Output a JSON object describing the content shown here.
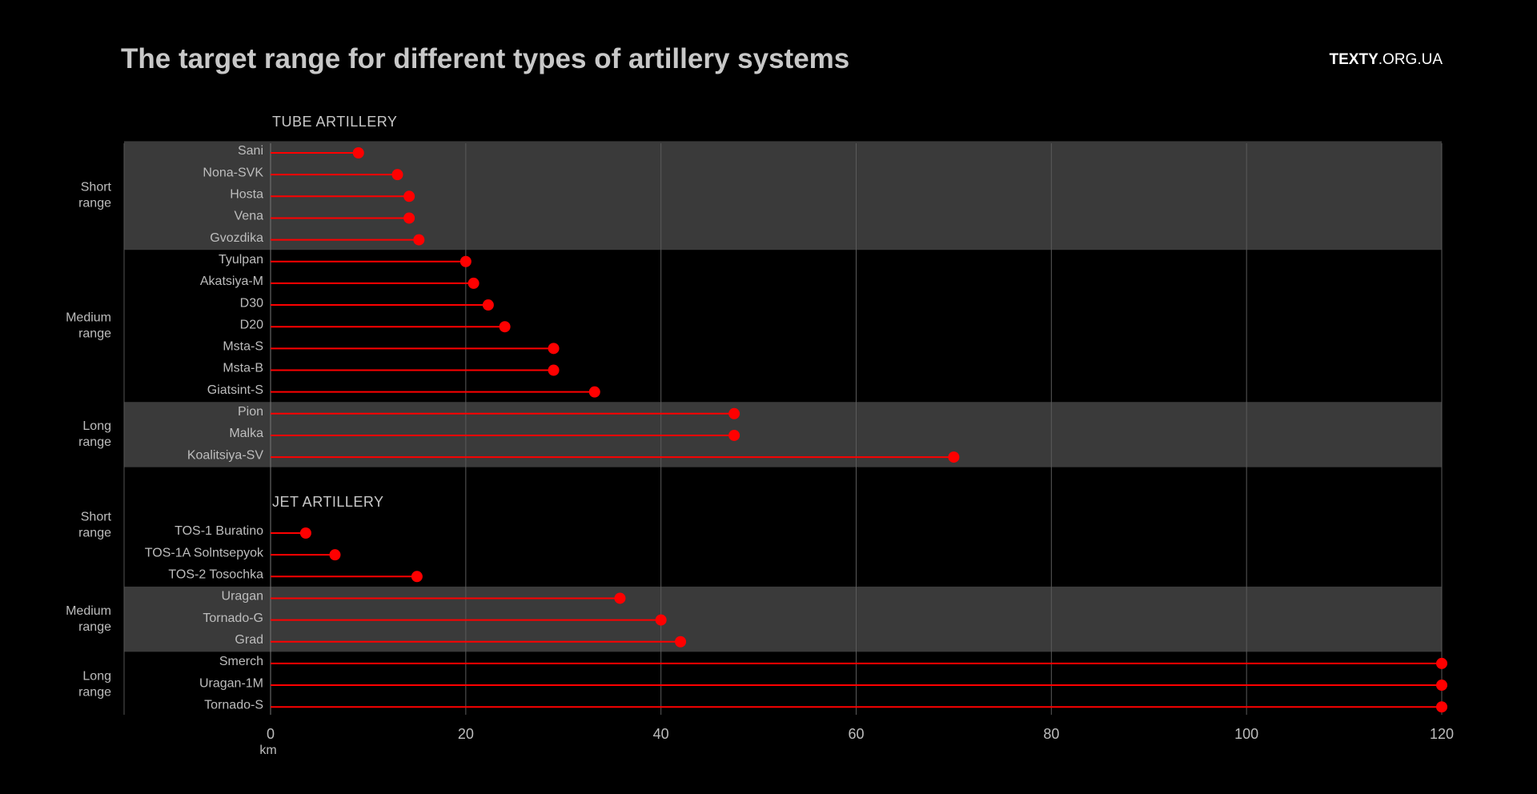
{
  "header": {
    "title": "The target range for different types of artillery systems",
    "brand_bold": "TEXTY",
    "brand_rest": ".ORG.UA"
  },
  "colors": {
    "background": "#000000",
    "band": "#3a3a3a",
    "mark": "#ff0000",
    "text": "#bdbdbd"
  },
  "chart_data": {
    "type": "lollipop",
    "title": "The target range for different types of artillery systems",
    "xlabel": "km",
    "xlim": [
      0,
      120
    ],
    "xticks": [
      0,
      20,
      40,
      60,
      80,
      100,
      120
    ],
    "grid": true,
    "sections": [
      {
        "name": "TUBE ARTILLERY",
        "groups": [
          {
            "label": [
              "Short",
              "range"
            ],
            "shaded": true,
            "items": [
              [
                "Sani",
                9
              ],
              [
                "Nona-SVK",
                13
              ],
              [
                "Hosta",
                14.2
              ],
              [
                "Vena",
                14.2
              ],
              [
                "Gvozdika",
                15.2
              ]
            ]
          },
          {
            "label": [
              "Medium",
              "range"
            ],
            "shaded": false,
            "items": [
              [
                "Tyulpan",
                20
              ],
              [
                "Akatsiya-M",
                20.8
              ],
              [
                "D30",
                22.3
              ],
              [
                "D20",
                24
              ],
              [
                "Msta-S",
                29
              ],
              [
                "Msta-B",
                29
              ],
              [
                "Giatsint-S",
                33.2
              ]
            ]
          },
          {
            "label": [
              "Long",
              "range"
            ],
            "shaded": true,
            "items": [
              [
                "Pion",
                47.5
              ],
              [
                "Malka",
                47.5
              ],
              [
                "Koalitsiya-SV",
                70
              ]
            ]
          }
        ]
      },
      {
        "name": "JET ARTILLERY",
        "groups": [
          {
            "label": [
              "Short",
              "range"
            ],
            "shaded": false,
            "items": [
              [
                "TOS-1 Buratino",
                3.6
              ],
              [
                "TOS-1A Solntsepyok",
                6.6
              ],
              [
                "TOS-2 Tosochka",
                15
              ]
            ]
          },
          {
            "label": [
              "Medium",
              "range"
            ],
            "shaded": true,
            "items": [
              [
                "Uragan",
                35.8
              ],
              [
                "Tornado-G",
                40
              ],
              [
                "Grad",
                42
              ]
            ]
          },
          {
            "label": [
              "Long",
              "range"
            ],
            "shaded": false,
            "items": [
              [
                "Smerch",
                120
              ],
              [
                "Uragan-1M",
                120
              ],
              [
                "Tornado-S",
                120
              ]
            ]
          }
        ]
      }
    ]
  }
}
